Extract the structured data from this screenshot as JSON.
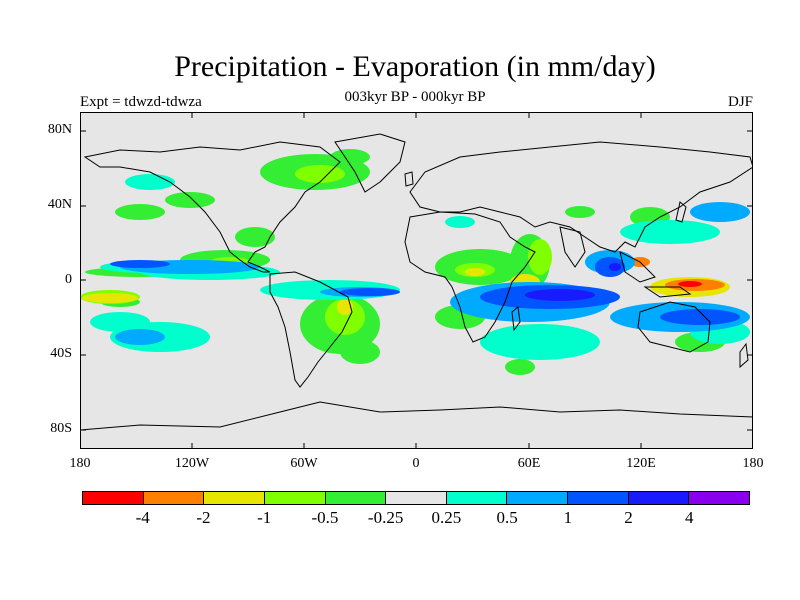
{
  "title": "Precipitation - Evaporation (in mm/day)",
  "subtitle": "003kyr BP - 000kyr BP",
  "left_label": "Expt = tdwzd-tdwza",
  "right_label": "DJF",
  "lat_labels": [
    "80N",
    "40N",
    "0",
    "40S",
    "80S"
  ],
  "lon_labels": [
    "180",
    "120W",
    "60W",
    "0",
    "60E",
    "120E",
    "180"
  ],
  "colorbar": {
    "colors": [
      "#ff0000",
      "#ff8000",
      "#e6e600",
      "#80ff00",
      "#33ee33",
      "#e6e6e6",
      "#00ffcc",
      "#00aaff",
      "#0055ff",
      "#1a1aff",
      "#8800ee"
    ],
    "labels": [
      "-4",
      "-2",
      "-1",
      "-0.5",
      "-0.25",
      "0.25",
      "0.5",
      "1",
      "2",
      "4"
    ]
  }
}
